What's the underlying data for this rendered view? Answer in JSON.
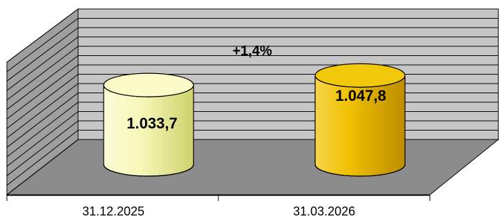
{
  "chart_data": {
    "type": "bar",
    "style": "3d-cylinder",
    "categories": [
      "31.12.2025",
      "31.03.2026"
    ],
    "values": [
      1033.7,
      1047.8
    ],
    "data_labels": [
      "1.033,7",
      "1.047,8"
    ],
    "annotation": "+1,4%",
    "grid": true,
    "legend": "none",
    "colors": {
      "bar_1": "#f2f39a",
      "bar_2": "#e9b800",
      "back_wall": "#c6c6c6",
      "side_wall": "#9f9f9f",
      "floor": "#8c8c8c",
      "grid_line": "#000000"
    }
  }
}
